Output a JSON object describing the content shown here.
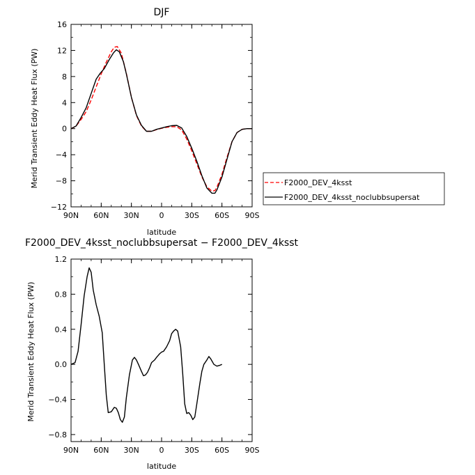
{
  "chart_data": [
    {
      "type": "line",
      "title": "DJF",
      "xlabel": "latitude",
      "ylabel": "Merid Transient Eddy Heat Flux (PW)",
      "x_tick_values": [
        90,
        60,
        30,
        0,
        -30,
        -60,
        -90
      ],
      "x_tick_labels": [
        "90N",
        "60N",
        "30N",
        "0",
        "30S",
        "60S",
        "90S"
      ],
      "xlim": [
        90,
        -90
      ],
      "ylim": [
        -12,
        16
      ],
      "y_ticks": [
        "16",
        "12",
        "8",
        "4",
        "0",
        "−4",
        "−8",
        "−12"
      ],
      "y_tick_values": [
        16,
        12,
        8,
        4,
        0,
        -4,
        -8,
        -12
      ],
      "legend_position": "right",
      "series": [
        {
          "name": "F2000_DEV_4ksst",
          "color": "#ff0000",
          "style": "dashed",
          "points": [
            [
              90,
              0
            ],
            [
              85,
              0.4
            ],
            [
              80,
              1.4
            ],
            [
              75,
              2.6
            ],
            [
              70,
              4.4
            ],
            [
              65,
              6.4
            ],
            [
              60,
              8.4
            ],
            [
              55,
              10.2
            ],
            [
              50,
              11.8
            ],
            [
              47,
              12.5
            ],
            [
              44,
              12.6
            ],
            [
              40,
              11.6
            ],
            [
              35,
              8.5
            ],
            [
              30,
              4.8
            ],
            [
              25,
              2.0
            ],
            [
              20,
              0.4
            ],
            [
              15,
              -0.4
            ],
            [
              10,
              -0.4
            ],
            [
              5,
              -0.15
            ],
            [
              0,
              0.05
            ],
            [
              -5,
              0.2
            ],
            [
              -10,
              0.3
            ],
            [
              -15,
              0.3
            ],
            [
              -20,
              -0.2
            ],
            [
              -25,
              -1.6
            ],
            [
              -30,
              -3.4
            ],
            [
              -35,
              -5.4
            ],
            [
              -40,
              -7.4
            ],
            [
              -45,
              -8.9
            ],
            [
              -50,
              -9.6
            ],
            [
              -53,
              -9.5
            ],
            [
              -55,
              -9.0
            ],
            [
              -60,
              -7.0
            ],
            [
              -65,
              -4.4
            ],
            [
              -70,
              -2.0
            ],
            [
              -75,
              -0.6
            ],
            [
              -80,
              -0.1
            ],
            [
              -85,
              0
            ],
            [
              -90,
              0
            ]
          ]
        },
        {
          "name": "F2000_DEV_4ksst_noclubbsupersat",
          "color": "#000000",
          "style": "solid",
          "points": [
            [
              90,
              0
            ],
            [
              85,
              0.4
            ],
            [
              80,
              1.7
            ],
            [
              75,
              3.2
            ],
            [
              70,
              5.4
            ],
            [
              65,
              7.6
            ],
            [
              61,
              8.5
            ],
            [
              57,
              9.2
            ],
            [
              52,
              10.6
            ],
            [
              48,
              11.6
            ],
            [
              45,
              12.1
            ],
            [
              42,
              11.8
            ],
            [
              38,
              10.3
            ],
            [
              35,
              8.4
            ],
            [
              30,
              4.8
            ],
            [
              25,
              2.1
            ],
            [
              20,
              0.5
            ],
            [
              15,
              -0.4
            ],
            [
              10,
              -0.4
            ],
            [
              5,
              -0.1
            ],
            [
              0,
              0.1
            ],
            [
              -5,
              0.3
            ],
            [
              -10,
              0.45
            ],
            [
              -15,
              0.5
            ],
            [
              -20,
              0.1
            ],
            [
              -25,
              -1.2
            ],
            [
              -30,
              -3.0
            ],
            [
              -35,
              -5.0
            ],
            [
              -40,
              -7.2
            ],
            [
              -45,
              -9.1
            ],
            [
              -50,
              -9.9
            ],
            [
              -53,
              -9.9
            ],
            [
              -55,
              -9.4
            ],
            [
              -60,
              -7.4
            ],
            [
              -65,
              -4.7
            ],
            [
              -70,
              -2.0
            ],
            [
              -75,
              -0.6
            ],
            [
              -80,
              -0.1
            ],
            [
              -85,
              0
            ],
            [
              -90,
              0
            ]
          ]
        }
      ]
    },
    {
      "type": "line",
      "title": "F2000_DEV_4ksst_noclubbsupersat − F2000_DEV_4ksst",
      "xlabel": "latitude",
      "ylabel": "Merid Transient Eddy Heat Flux (PW)",
      "x_tick_values": [
        90,
        60,
        30,
        0,
        -30,
        -60,
        -90
      ],
      "x_tick_labels": [
        "90N",
        "60N",
        "30N",
        "0",
        "30S",
        "60S",
        "90S"
      ],
      "xlim": [
        90,
        -90
      ],
      "ylim": [
        -0.88,
        1.2
      ],
      "y_ticks": [
        "1.2",
        "0.8",
        "0.4",
        "0.0",
        "−0.4",
        "−0.8"
      ],
      "y_tick_values": [
        1.2,
        0.8,
        0.4,
        0.0,
        -0.4,
        -0.8
      ],
      "series": [
        {
          "color": "#000000",
          "style": "solid",
          "points": [
            [
              90,
              0
            ],
            [
              86,
              0.02
            ],
            [
              83,
              0.15
            ],
            [
              80,
              0.45
            ],
            [
              77,
              0.78
            ],
            [
              74,
              1.0
            ],
            [
              72,
              1.1
            ],
            [
              70,
              1.05
            ],
            [
              68,
              0.85
            ],
            [
              65,
              0.68
            ],
            [
              62,
              0.55
            ],
            [
              59,
              0.36
            ],
            [
              57,
              0.0
            ],
            [
              55,
              -0.35
            ],
            [
              53,
              -0.55
            ],
            [
              50,
              -0.54
            ],
            [
              47,
              -0.49
            ],
            [
              45,
              -0.5
            ],
            [
              43,
              -0.55
            ],
            [
              41,
              -0.63
            ],
            [
              39,
              -0.66
            ],
            [
              37,
              -0.6
            ],
            [
              35,
              -0.38
            ],
            [
              32,
              -0.12
            ],
            [
              29,
              0.05
            ],
            [
              27,
              0.08
            ],
            [
              25,
              0.05
            ],
            [
              23,
              0.0
            ],
            [
              20,
              -0.08
            ],
            [
              18,
              -0.13
            ],
            [
              16,
              -0.12
            ],
            [
              14,
              -0.09
            ],
            [
              12,
              -0.04
            ],
            [
              10,
              0.02
            ],
            [
              7,
              0.05
            ],
            [
              5,
              0.08
            ],
            [
              2,
              0.12
            ],
            [
              0,
              0.14
            ],
            [
              -2,
              0.15
            ],
            [
              -5,
              0.2
            ],
            [
              -8,
              0.27
            ],
            [
              -10,
              0.35
            ],
            [
              -12,
              0.38
            ],
            [
              -14,
              0.4
            ],
            [
              -16,
              0.38
            ],
            [
              -19,
              0.2
            ],
            [
              -21,
              -0.1
            ],
            [
              -23,
              -0.45
            ],
            [
              -25,
              -0.56
            ],
            [
              -27,
              -0.55
            ],
            [
              -29,
              -0.58
            ],
            [
              -31,
              -0.63
            ],
            [
              -33,
              -0.6
            ],
            [
              -35,
              -0.45
            ],
            [
              -38,
              -0.22
            ],
            [
              -40,
              -0.08
            ],
            [
              -42,
              0.0
            ],
            [
              -45,
              0.05
            ],
            [
              -47,
              0.09
            ],
            [
              -49,
              0.06
            ],
            [
              -52,
              0.0
            ],
            [
              -55,
              -0.02
            ],
            [
              -58,
              -0.01
            ],
            [
              -60,
              0.0
            ]
          ]
        }
      ]
    }
  ]
}
